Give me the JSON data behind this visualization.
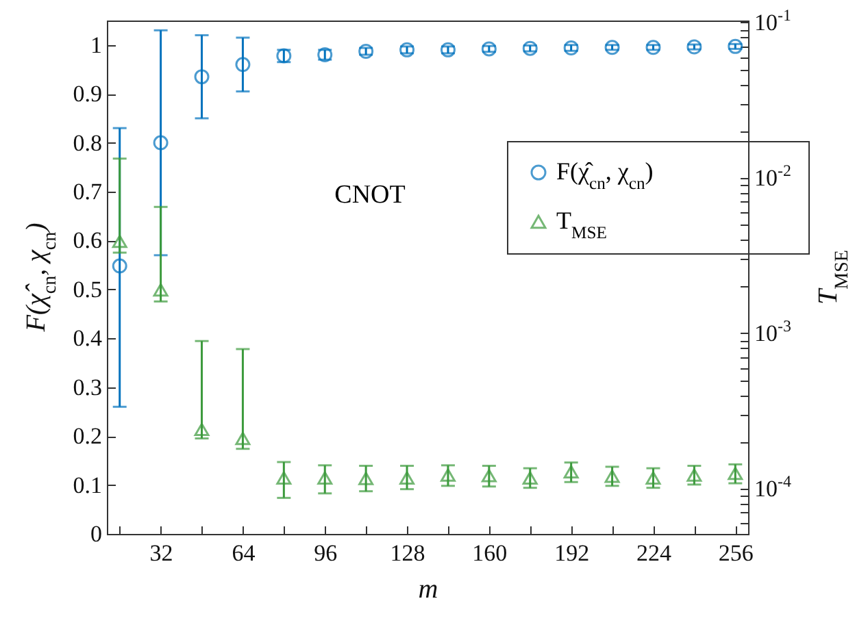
{
  "chart_data": {
    "type": "scatter",
    "xlabel": "m",
    "ylabel": "F(χ̂$_{cn}$, χ$_{cn}$)",
    "y2label": "T$_{MSE}$",
    "annotations": [
      "CNOT"
    ],
    "legend": "right",
    "x": [
      16,
      32,
      48,
      64,
      80,
      96,
      112,
      128,
      144,
      160,
      176,
      192,
      208,
      224,
      240,
      256
    ],
    "xlim": [
      11,
      261
    ],
    "xticks": [
      {
        "value": 16,
        "label": null
      },
      32,
      {
        "value": 48,
        "label": null
      },
      64,
      {
        "value": 80,
        "label": null
      },
      96,
      {
        "value": 112,
        "label": null
      },
      128,
      {
        "value": 144,
        "label": null
      },
      160,
      {
        "value": 176,
        "label": null
      },
      192,
      {
        "value": 208,
        "label": null
      },
      224,
      {
        "value": 240,
        "label": null
      },
      256
    ],
    "ylim": [
      0,
      1.05
    ],
    "yticks": [
      0,
      0.1,
      0.2,
      0.3,
      0.4,
      0.5,
      0.6,
      0.7,
      0.8,
      0.9,
      1
    ],
    "y2lim": [
      5.1e-05,
      0.103
    ],
    "y2ticks": [
      {
        "value": 6e-05,
        "label": null
      },
      {
        "value": 7e-05,
        "label": null
      },
      {
        "value": 8e-05,
        "label": null
      },
      {
        "value": 9e-05,
        "label": null
      },
      {
        "value": 0.0001,
        "label": "10$^{-4}$"
      },
      {
        "value": 0.0002,
        "label": null
      },
      {
        "value": 0.0003,
        "label": null
      },
      {
        "value": 0.0004,
        "label": null
      },
      {
        "value": 0.0005,
        "label": null
      },
      {
        "value": 0.0006,
        "label": null
      },
      {
        "value": 0.0007,
        "label": null
      },
      {
        "value": 0.0008,
        "label": null
      },
      {
        "value": 0.0009,
        "label": null
      },
      {
        "value": 0.001,
        "label": "10$^{-3}$"
      },
      {
        "value": 0.002,
        "label": null
      },
      {
        "value": 0.003,
        "label": null
      },
      {
        "value": 0.004,
        "label": null
      },
      {
        "value": 0.005,
        "label": null
      },
      {
        "value": 0.006,
        "label": null
      },
      {
        "value": 0.007,
        "label": null
      },
      {
        "value": 0.008,
        "label": null
      },
      {
        "value": 0.009,
        "label": null
      },
      {
        "value": 0.01,
        "label": "10$^{-2}$"
      },
      {
        "value": 0.02,
        "label": null
      },
      {
        "value": 0.03,
        "label": null
      },
      {
        "value": 0.04,
        "label": null
      },
      {
        "value": 0.05,
        "label": null
      },
      {
        "value": 0.06,
        "label": null
      },
      {
        "value": 0.07,
        "label": null
      },
      {
        "value": 0.08,
        "label": null
      },
      {
        "value": 0.09,
        "label": null
      },
      {
        "value": 0.1,
        "label": "10$^{-1}$"
      }
    ],
    "log": "y2",
    "series": [
      {
        "name": "F(χ̂$_{cn}$, χ$_{cn}$)",
        "color": "#0072bd",
        "marker": "circle",
        "values": [
          0.548,
          0.8,
          0.935,
          0.96,
          0.978,
          0.98,
          0.987,
          0.99,
          0.99,
          0.992,
          0.993,
          0.994,
          0.995,
          0.995,
          0.996,
          0.997
        ],
        "errors": [
          [
            0.26,
            0.83
          ],
          [
            0.57,
            1.03
          ],
          [
            0.85,
            1.02
          ],
          [
            0.905,
            1.015
          ],
          [
            0.965,
            0.99
          ],
          [
            0.97,
            0.99
          ],
          [
            0.98,
            0.994
          ],
          [
            0.983,
            0.997
          ],
          [
            0.983,
            0.997
          ],
          [
            0.986,
            0.998
          ],
          [
            0.987,
            0.999
          ],
          [
            0.988,
            1.0
          ],
          [
            0.99,
            1.0
          ],
          [
            0.99,
            1.0
          ],
          [
            0.991,
            1.001
          ],
          [
            0.992,
            1.002
          ]
        ]
      },
      {
        "name": "T$_{MSE}$",
        "color": "#3c9a3c",
        "marker": "triangle",
        "axis": "y2",
        "values": [
          0.0039,
          0.0019,
          0.00024,
          0.00021,
          0.000117,
          0.000117,
          0.000116,
          0.000117,
          0.000122,
          0.000121,
          0.000117,
          0.000128,
          0.00012,
          0.000117,
          0.000122,
          0.000125
        ],
        "errors": [
          [
            0.0033,
            0.0133
          ],
          [
            0.0016,
            0.0065
          ],
          [
            0.00021,
            0.00089
          ],
          [
            0.00018,
            0.00079
          ],
          [
            8.7e-05,
            0.000148
          ],
          [
            9.3e-05,
            0.000141
          ],
          [
            9.6e-05,
            0.00014
          ],
          [
            9.9e-05,
            0.00014
          ],
          [
            0.000104,
            0.000141
          ],
          [
            0.000103,
            0.00014
          ],
          [
            0.000101,
            0.000135
          ],
          [
            0.00011,
            0.000147
          ],
          [
            0.000104,
            0.000138
          ],
          [
            0.000101,
            0.000135
          ],
          [
            0.000106,
            0.00014
          ],
          [
            0.000108,
            0.000143
          ]
        ]
      }
    ]
  }
}
